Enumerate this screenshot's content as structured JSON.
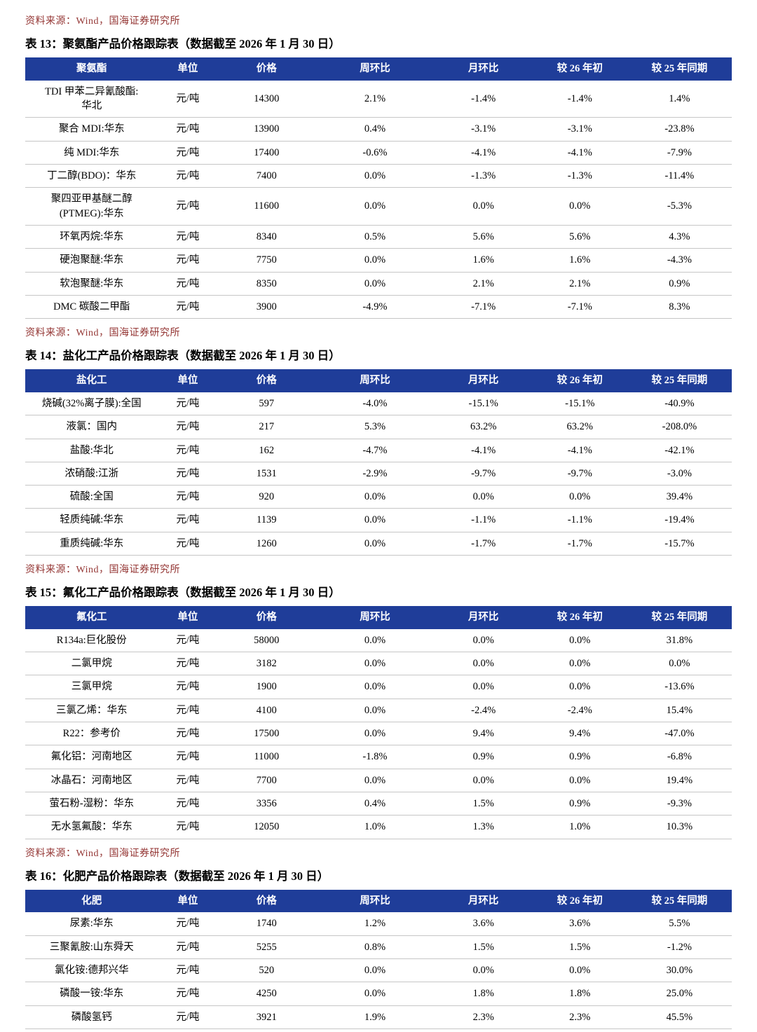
{
  "theme": {
    "header_bg": "#1F3D99",
    "header_text": "#FFFFFF",
    "source_text": "#943634",
    "row_border": "#C6C6C6"
  },
  "page": {
    "top_source": "资料来源：Wind，国海证券研究所"
  },
  "tables": [
    {
      "title": "表 13：聚氨酯产品价格跟踪表（数据截至 2026 年 1 月 30 日）",
      "headers": [
        "聚氨酯",
        "单位",
        "价格",
        "周环比",
        "月环比",
        "较 26 年初",
        "较 25 年同期"
      ],
      "rows": [
        [
          "TDI 甲苯二异氰酸酯:\n华北",
          "元/吨",
          "14300",
          "2.1%",
          "-1.4%",
          "-1.4%",
          "1.4%"
        ],
        [
          "聚合 MDI:华东",
          "元/吨",
          "13900",
          "0.4%",
          "-3.1%",
          "-3.1%",
          "-23.8%"
        ],
        [
          "纯 MDI:华东",
          "元/吨",
          "17400",
          "-0.6%",
          "-4.1%",
          "-4.1%",
          "-7.9%"
        ],
        [
          "丁二醇(BDO)：华东",
          "元/吨",
          "7400",
          "0.0%",
          "-1.3%",
          "-1.3%",
          "-11.4%"
        ],
        [
          "聚四亚甲基醚二醇\n(PTMEG):华东",
          "元/吨",
          "11600",
          "0.0%",
          "0.0%",
          "0.0%",
          "-5.3%"
        ],
        [
          "环氧丙烷:华东",
          "元/吨",
          "8340",
          "0.5%",
          "5.6%",
          "5.6%",
          "4.3%"
        ],
        [
          "硬泡聚醚:华东",
          "元/吨",
          "7750",
          "0.0%",
          "1.6%",
          "1.6%",
          "-4.3%"
        ],
        [
          "软泡聚醚:华东",
          "元/吨",
          "8350",
          "0.0%",
          "2.1%",
          "2.1%",
          "0.9%"
        ],
        [
          "DMC 碳酸二甲酯",
          "元/吨",
          "3900",
          "-4.9%",
          "-7.1%",
          "-7.1%",
          "8.3%"
        ]
      ],
      "source": "资料来源：Wind，国海证券研究所"
    },
    {
      "title": "表 14：盐化工产品价格跟踪表（数据截至 2026 年 1 月 30 日）",
      "headers": [
        "盐化工",
        "单位",
        "价格",
        "周环比",
        "月环比",
        "较 26 年初",
        "较 25 年同期"
      ],
      "rows": [
        [
          "烧碱(32%离子膜):全国",
          "元/吨",
          "597",
          "-4.0%",
          "-15.1%",
          "-15.1%",
          "-40.9%"
        ],
        [
          "液氯：国内",
          "元/吨",
          "217",
          "5.3%",
          "63.2%",
          "63.2%",
          "-208.0%"
        ],
        [
          "盐酸:华北",
          "元/吨",
          "162",
          "-4.7%",
          "-4.1%",
          "-4.1%",
          "-42.1%"
        ],
        [
          "浓硝酸:江浙",
          "元/吨",
          "1531",
          "-2.9%",
          "-9.7%",
          "-9.7%",
          "-3.0%"
        ],
        [
          "硫酸:全国",
          "元/吨",
          "920",
          "0.0%",
          "0.0%",
          "0.0%",
          "39.4%"
        ],
        [
          "轻质纯碱:华东",
          "元/吨",
          "1139",
          "0.0%",
          "-1.1%",
          "-1.1%",
          "-19.4%"
        ],
        [
          "重质纯碱:华东",
          "元/吨",
          "1260",
          "0.0%",
          "-1.7%",
          "-1.7%",
          "-15.7%"
        ]
      ],
      "source": "资料来源：Wind，国海证券研究所"
    },
    {
      "title": "表 15：氟化工产品价格跟踪表（数据截至 2026 年 1 月 30 日）",
      "headers": [
        "氟化工",
        "单位",
        "价格",
        "周环比",
        "月环比",
        "较 26 年初",
        "较 25 年同期"
      ],
      "rows": [
        [
          "R134a:巨化股份",
          "元/吨",
          "58000",
          "0.0%",
          "0.0%",
          "0.0%",
          "31.8%"
        ],
        [
          "二氯甲烷",
          "元/吨",
          "3182",
          "0.0%",
          "0.0%",
          "0.0%",
          "0.0%"
        ],
        [
          "三氯甲烷",
          "元/吨",
          "1900",
          "0.0%",
          "0.0%",
          "0.0%",
          "-13.6%"
        ],
        [
          "三氯乙烯：华东",
          "元/吨",
          "4100",
          "0.0%",
          "-2.4%",
          "-2.4%",
          "15.4%"
        ],
        [
          "R22：参考价",
          "元/吨",
          "17500",
          "0.0%",
          "9.4%",
          "9.4%",
          "-47.0%"
        ],
        [
          "氟化铝：河南地区",
          "元/吨",
          "11000",
          "-1.8%",
          "0.9%",
          "0.9%",
          "-6.8%"
        ],
        [
          "冰晶石：河南地区",
          "元/吨",
          "7700",
          "0.0%",
          "0.0%",
          "0.0%",
          "19.4%"
        ],
        [
          "萤石粉-湿粉：华东",
          "元/吨",
          "3356",
          "0.4%",
          "1.5%",
          "0.9%",
          "-9.3%"
        ],
        [
          "无水氢氟酸：华东",
          "元/吨",
          "12050",
          "1.0%",
          "1.3%",
          "1.0%",
          "10.3%"
        ]
      ],
      "source": "资料来源：Wind，国海证券研究所"
    },
    {
      "title": "表 16：化肥产品价格跟踪表（数据截至 2026 年 1 月 30 日）",
      "headers": [
        "化肥",
        "单位",
        "价格",
        "周环比",
        "月环比",
        "较 26 年初",
        "较 25 年同期"
      ],
      "rows": [
        [
          "尿素:华东",
          "元/吨",
          "1740",
          "1.2%",
          "3.6%",
          "3.6%",
          "5.5%"
        ],
        [
          "三聚氰胺:山东舜天",
          "元/吨",
          "5255",
          "0.8%",
          "1.5%",
          "1.5%",
          "-1.2%"
        ],
        [
          "氯化铵:德邦兴华",
          "元/吨",
          "520",
          "0.0%",
          "0.0%",
          "0.0%",
          "30.0%"
        ],
        [
          "磷酸一铵:华东",
          "元/吨",
          "4250",
          "0.0%",
          "1.8%",
          "1.8%",
          "25.0%"
        ],
        [
          "磷酸氢钙",
          "元/吨",
          "3921",
          "1.9%",
          "2.3%",
          "2.3%",
          "45.5%"
        ]
      ]
    }
  ]
}
